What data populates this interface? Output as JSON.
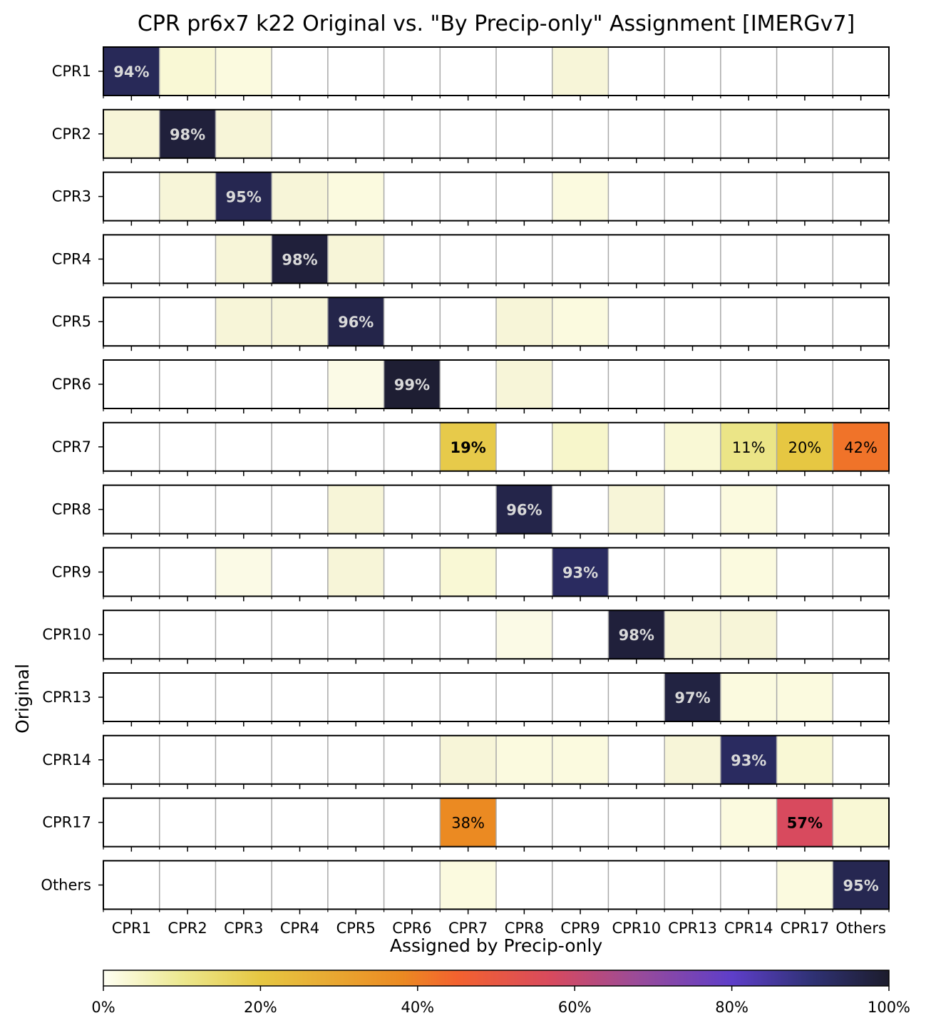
{
  "chart_data": {
    "type": "heatmap",
    "title": "CPR pr6x7 k22 Original vs. \"By Precip-only\" Assignment [IMERGv7]",
    "xlabel": "Assigned by Precip-only",
    "ylabel": "Original",
    "columns": [
      "CPR1",
      "CPR2",
      "CPR3",
      "CPR4",
      "CPR5",
      "CPR6",
      "CPR7",
      "CPR8",
      "CPR9",
      "CPR10",
      "CPR13",
      "CPR14",
      "CPR17",
      "Others"
    ],
    "rows": [
      "CPR1",
      "CPR2",
      "CPR3",
      "CPR4",
      "CPR5",
      "CPR6",
      "CPR7",
      "CPR8",
      "CPR9",
      "CPR10",
      "CPR13",
      "CPR14",
      "CPR17",
      "Others"
    ],
    "values": [
      [
        94,
        3,
        2,
        0,
        0,
        0,
        0,
        0,
        1,
        0,
        0,
        0,
        0,
        0
      ],
      [
        1,
        98,
        1,
        0,
        0,
        0,
        0,
        0,
        0,
        0,
        0,
        0,
        0,
        0
      ],
      [
        0,
        1,
        95,
        1,
        2,
        0,
        0,
        0,
        2,
        0,
        0,
        0,
        0,
        0
      ],
      [
        0,
        0,
        1,
        98,
        1,
        0,
        0,
        0,
        0,
        0,
        0,
        0,
        0,
        0
      ],
      [
        0,
        0,
        1,
        1,
        96,
        0,
        0,
        1,
        2,
        0,
        0,
        0,
        0,
        0
      ],
      [
        0,
        0,
        0,
        0,
        0.5,
        99,
        0,
        1,
        0,
        0,
        0,
        0,
        0,
        0
      ],
      [
        0,
        0,
        0,
        0,
        0,
        0,
        19,
        0,
        4,
        0,
        3,
        11,
        20,
        42
      ],
      [
        0,
        0,
        0,
        0,
        1,
        0,
        0,
        96,
        0,
        1,
        0,
        2,
        0,
        0
      ],
      [
        0,
        0,
        0.5,
        0,
        1,
        0,
        3,
        0,
        93,
        0,
        0,
        2,
        0,
        0
      ],
      [
        0,
        0,
        0,
        0,
        0,
        0,
        0,
        0.5,
        0,
        98,
        1,
        1,
        0,
        0
      ],
      [
        0,
        0,
        0,
        0,
        0,
        0,
        0,
        0,
        0,
        0,
        97,
        2,
        2,
        0
      ],
      [
        0,
        0,
        0,
        0,
        0,
        0,
        1,
        2,
        2,
        0,
        1,
        93,
        3,
        0
      ],
      [
        0,
        0,
        0,
        0,
        0,
        0,
        38,
        0,
        0,
        0,
        0,
        2,
        57,
        3
      ],
      [
        0,
        0,
        0,
        0,
        0,
        0,
        2,
        0,
        0,
        0,
        0,
        0,
        2,
        95
      ]
    ],
    "annotations": [
      {
        "row": 0,
        "col": 0,
        "text": "94%",
        "bold": true
      },
      {
        "row": 1,
        "col": 1,
        "text": "98%",
        "bold": true
      },
      {
        "row": 2,
        "col": 2,
        "text": "95%",
        "bold": true
      },
      {
        "row": 3,
        "col": 3,
        "text": "98%",
        "bold": true
      },
      {
        "row": 4,
        "col": 4,
        "text": "96%",
        "bold": true
      },
      {
        "row": 5,
        "col": 5,
        "text": "99%",
        "bold": true
      },
      {
        "row": 6,
        "col": 6,
        "text": "19%",
        "bold": true
      },
      {
        "row": 6,
        "col": 11,
        "text": "11%",
        "bold": false
      },
      {
        "row": 6,
        "col": 12,
        "text": "20%",
        "bold": false
      },
      {
        "row": 6,
        "col": 13,
        "text": "42%",
        "bold": false
      },
      {
        "row": 7,
        "col": 7,
        "text": "96%",
        "bold": true
      },
      {
        "row": 8,
        "col": 8,
        "text": "93%",
        "bold": true
      },
      {
        "row": 9,
        "col": 9,
        "text": "98%",
        "bold": true
      },
      {
        "row": 10,
        "col": 10,
        "text": "97%",
        "bold": true
      },
      {
        "row": 11,
        "col": 11,
        "text": "93%",
        "bold": true
      },
      {
        "row": 12,
        "col": 6,
        "text": "38%",
        "bold": false
      },
      {
        "row": 12,
        "col": 12,
        "text": "57%",
        "bold": true
      },
      {
        "row": 13,
        "col": 13,
        "text": "95%",
        "bold": true
      }
    ],
    "colorbar": {
      "ticks": [
        "0%",
        "20%",
        "40%",
        "60%",
        "80%",
        "100%"
      ],
      "range": [
        0,
        100
      ],
      "colormap": [
        {
          "v": 0,
          "c": "#fffff3"
        },
        {
          "v": 10,
          "c": "#ece88f"
        },
        {
          "v": 20,
          "c": "#e6c742"
        },
        {
          "v": 38,
          "c": "#eb8a22"
        },
        {
          "v": 45,
          "c": "#f3622f"
        },
        {
          "v": 57,
          "c": "#d84a5e"
        },
        {
          "v": 68,
          "c": "#9a4b99"
        },
        {
          "v": 80,
          "c": "#5e3ec9"
        },
        {
          "v": 90,
          "c": "#303276"
        },
        {
          "v": 100,
          "c": "#1c1c2c"
        }
      ]
    },
    "grid": true
  }
}
